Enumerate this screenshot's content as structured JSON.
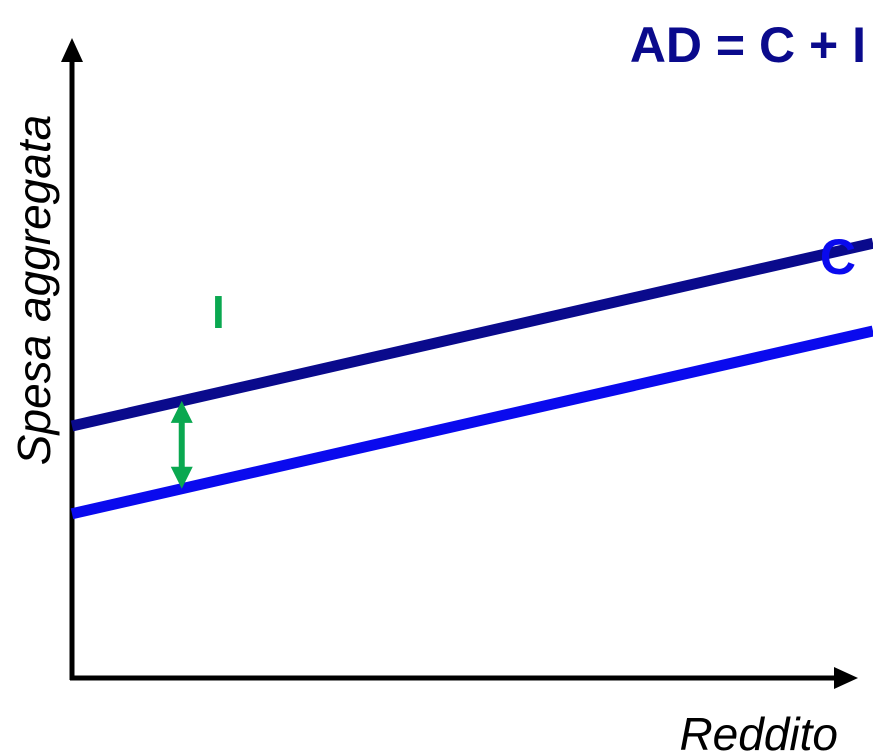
{
  "chart_data": {
    "type": "line",
    "title": "",
    "xlabel": "Reddito",
    "ylabel": "Spesa aggregata",
    "xlim": [
      0,
      10
    ],
    "ylim": [
      0,
      10
    ],
    "grid": false,
    "legend": "none",
    "series": [
      {
        "name": "AD = C + I",
        "x": [
          0,
          10
        ],
        "values": [
          4.0,
          6.77
        ],
        "color": "#0a0a8c"
      },
      {
        "name": "C",
        "x": [
          0,
          10
        ],
        "values": [
          2.67,
          5.44
        ],
        "color": "#0a0aee"
      }
    ],
    "annotations": [
      {
        "label": "I",
        "x": 1.37,
        "y_from": 3.05,
        "y_to": 4.38,
        "color": "#0aa850"
      }
    ]
  }
}
